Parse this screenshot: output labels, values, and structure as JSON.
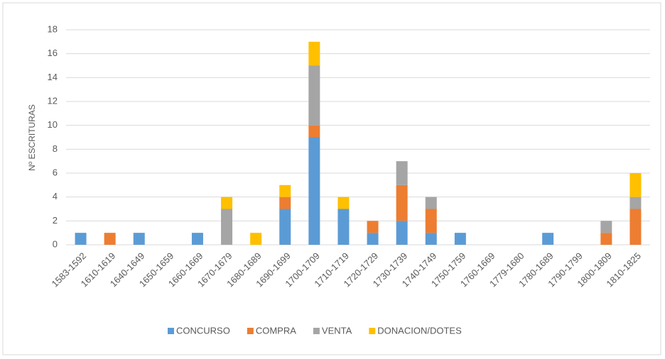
{
  "chart_data": {
    "type": "bar",
    "stacked": true,
    "y_label": "Nº ESCRITURAS",
    "categories": [
      "1583-1592",
      "1610-1619",
      "1640-1649",
      "1650-1659",
      "1660-1669",
      "1670-1679",
      "1680-1689",
      "1690-1699",
      "1700-1709",
      "1710-1719",
      "1720-1729",
      "1730-1739",
      "1740-1749",
      "1750-1759",
      "1760-1669",
      "1779-1680",
      "1780-1689",
      "1790-1799",
      "1800-1809",
      "1810-1825"
    ],
    "series": [
      {
        "name": "CONCURSO",
        "color": "#5b9bd5",
        "values": [
          1,
          0,
          1,
          0,
          1,
          0,
          0,
          3,
          9,
          3,
          1,
          2,
          1,
          1,
          0,
          0,
          1,
          0,
          0,
          0
        ]
      },
      {
        "name": "COMPRA",
        "color": "#ed7d31",
        "values": [
          0,
          1,
          0,
          0,
          0,
          0,
          0,
          1,
          1,
          0,
          1,
          3,
          2,
          0,
          0,
          0,
          0,
          0,
          1,
          3
        ]
      },
      {
        "name": "VENTA",
        "color": "#a5a5a5",
        "values": [
          0,
          0,
          0,
          0,
          0,
          3,
          0,
          0,
          5,
          0,
          0,
          2,
          1,
          0,
          0,
          0,
          0,
          0,
          1,
          1
        ]
      },
      {
        "name": "DONACION/DOTES",
        "color": "#ffc000",
        "values": [
          0,
          0,
          0,
          0,
          0,
          1,
          1,
          1,
          2,
          1,
          0,
          0,
          0,
          0,
          0,
          0,
          0,
          0,
          0,
          2
        ]
      }
    ],
    "ylim": [
      0,
      18
    ],
    "yticks": [
      0,
      2,
      4,
      6,
      8,
      10,
      12,
      14,
      16,
      18
    ],
    "grid": true,
    "legend": "bottom"
  }
}
